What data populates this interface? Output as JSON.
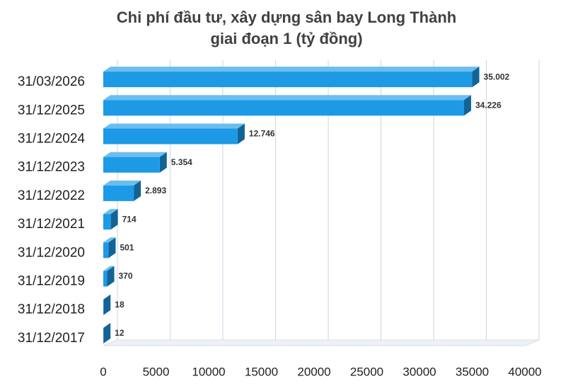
{
  "chart_data": {
    "type": "bar",
    "orientation": "horizontal",
    "title": [
      "Chi phí đầu tư, xây dựng sân bay Long Thành",
      "giai đoạn 1 (tỷ đồng)"
    ],
    "categories": [
      "31/03/2026",
      "31/12/2025",
      "31/12/2024",
      "31/12/2023",
      "31/12/2022",
      "31/12/2021",
      "31/12/2020",
      "31/12/2019",
      "31/12/2018",
      "31/12/2017"
    ],
    "values": [
      35002,
      34226,
      12746,
      5354,
      2893,
      714,
      501,
      370,
      18,
      12
    ],
    "value_labels": [
      "35.002",
      "34.226",
      "12.746",
      "5.354",
      "2.893",
      "714",
      "501",
      "370",
      "18",
      "12"
    ],
    "color": "#1c9ae6",
    "xlim": [
      0,
      40000
    ],
    "xticks": [
      0,
      5000,
      10000,
      15000,
      20000,
      25000,
      30000,
      35000,
      40000
    ],
    "grid": true
  }
}
